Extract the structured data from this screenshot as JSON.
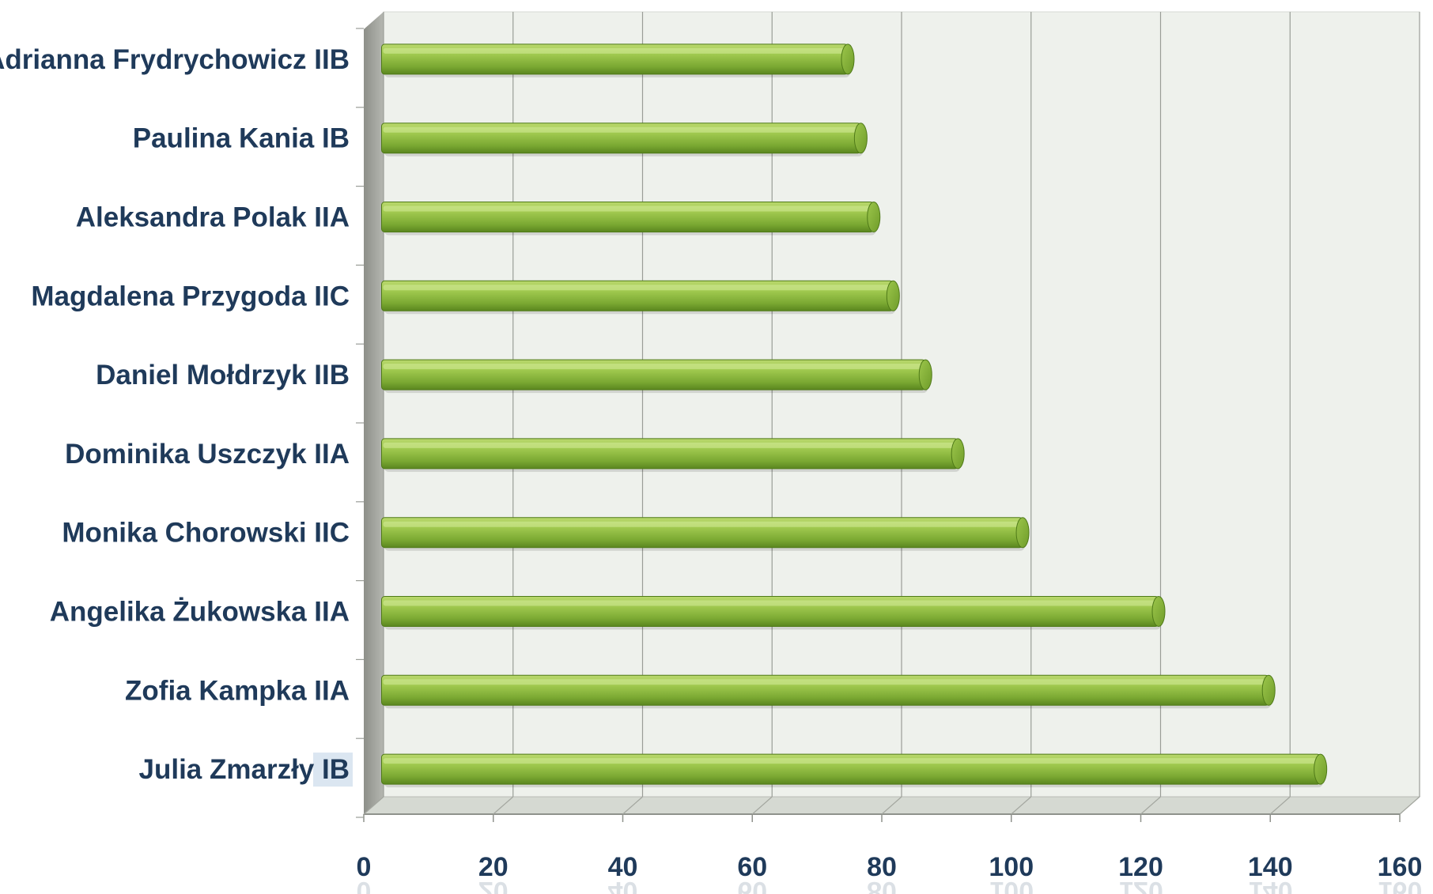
{
  "chart_data": {
    "type": "bar",
    "orientation": "horizontal",
    "style": "3d-cylinder",
    "categories": [
      "Julia Zmarzły IB",
      "Zofia Kampka IIA",
      "Angelika Żukowska IIA",
      "Monika Chorowski IIC",
      "Dominika Uszczyk IIA",
      "Daniel Mołdrzyk IIB",
      "Magdalena Przygoda IIC",
      "Aleksandra Polak IIA",
      "Paulina Kania IB",
      "Adrianna Frydrychowicz IIB"
    ],
    "values": [
      145,
      137,
      120,
      99,
      89,
      84,
      79,
      76,
      74,
      72
    ],
    "xlim": [
      0,
      160
    ],
    "xticks": [
      "0",
      "20",
      "40",
      "60",
      "80",
      "100",
      "120",
      "140",
      "160"
    ],
    "grid": true,
    "legend": "none",
    "title": "",
    "xlabel": "",
    "ylabel": "",
    "colors": {
      "bar": "#8dbb3f",
      "bar_light": "#c3e07a",
      "bar_dark": "#5d8a22",
      "plot_bg": "#eef1ec",
      "wall": "#9c9e98",
      "floor": "#d5d9d2",
      "grid": "#9a9d97",
      "label": "#1f3a5a",
      "highlight_bg": "#dbe6f1"
    }
  }
}
